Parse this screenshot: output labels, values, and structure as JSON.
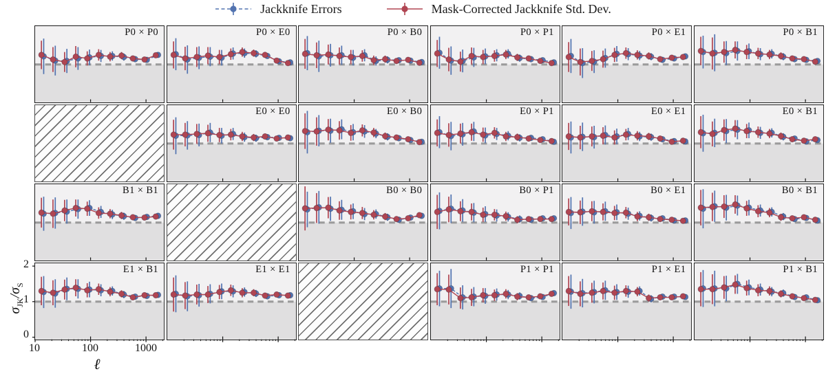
{
  "legend": {
    "items": [
      {
        "label": "Jackknife Errors",
        "color": "#5273b0",
        "line": "dashed"
      },
      {
        "label": "Mask-Corrected Jackknife Std. Dev.",
        "color": "#b04552",
        "line": "solid"
      }
    ]
  },
  "axes": {
    "xlabel": "ℓ",
    "ylabel": {
      "sym1": "σ",
      "sub1": "JK",
      "slash": "/",
      "sym2": "σ",
      "sub2": "S"
    },
    "yticklabels": [
      "2",
      "1",
      "0"
    ],
    "xticklabels": [
      "10",
      "100",
      "1000"
    ],
    "xscale": "log",
    "xlim": [
      10,
      2100
    ],
    "ylim": [
      -0.06,
      2.08
    ],
    "reference_line_y": 1
  },
  "colors": {
    "blue": "#5273b0",
    "red": "#b04552",
    "band_upper": "#f2f1f2",
    "band_lower": "#e0dfe0",
    "dashed_line": "#9b9b9b",
    "tick": "#111111",
    "hatch": "#6f6f6f"
  },
  "chart_data": {
    "type": "scatter",
    "subtype": "errorbar-grid",
    "rows": 4,
    "cols": 6,
    "x": [
      13,
      21,
      34,
      54,
      87,
      140,
      225,
      362,
      580,
      940,
      1500
    ],
    "x_offset_factor_blue": 1.1,
    "series_names": [
      "Mask-Corrected Jackknife Std. Dev. (red)",
      "Jackknife Errors (blue)"
    ],
    "panels": [
      {
        "label": "P0 × P0",
        "hatched": false,
        "red": [
          1.27,
          1.14,
          1.07,
          1.22,
          1.17,
          1.27,
          1.22,
          1.25,
          1.17,
          1.14,
          1.26
        ],
        "blue": [
          1.23,
          1.11,
          1.1,
          1.17,
          1.2,
          1.24,
          1.24,
          1.21,
          1.15,
          1.13,
          1.27
        ],
        "rerr": [
          0.4,
          0.35,
          0.28,
          0.3,
          0.2,
          0.16,
          0.13,
          0.1,
          0.08,
          0.06,
          0.05
        ],
        "berr": [
          0.5,
          0.42,
          0.34,
          0.32,
          0.22,
          0.17,
          0.13,
          0.1,
          0.08,
          0.06,
          0.05
        ]
      },
      {
        "label": "P0 × E0",
        "hatched": false,
        "red": [
          1.27,
          1.17,
          1.21,
          1.25,
          1.21,
          1.29,
          1.35,
          1.32,
          1.27,
          1.11,
          1.04
        ],
        "blue": [
          1.29,
          1.14,
          1.19,
          1.22,
          1.19,
          1.31,
          1.32,
          1.3,
          1.24,
          1.09,
          1.06
        ],
        "rerr": [
          0.38,
          0.33,
          0.28,
          0.24,
          0.2,
          0.16,
          0.13,
          0.1,
          0.08,
          0.06,
          0.05
        ],
        "berr": [
          0.45,
          0.4,
          0.32,
          0.27,
          0.22,
          0.17,
          0.13,
          0.1,
          0.08,
          0.06,
          0.05
        ]
      },
      {
        "label": "P0 × B0",
        "hatched": false,
        "red": [
          1.3,
          1.26,
          1.28,
          1.24,
          1.21,
          1.24,
          1.12,
          1.15,
          1.1,
          1.13,
          1.05
        ],
        "blue": [
          1.32,
          1.23,
          1.26,
          1.26,
          1.19,
          1.26,
          1.1,
          1.13,
          1.12,
          1.11,
          1.07
        ],
        "rerr": [
          0.42,
          0.36,
          0.28,
          0.24,
          0.2,
          0.16,
          0.13,
          0.1,
          0.08,
          0.06,
          0.05
        ],
        "berr": [
          0.48,
          0.44,
          0.32,
          0.27,
          0.22,
          0.17,
          0.13,
          0.1,
          0.08,
          0.06,
          0.05
        ]
      },
      {
        "label": "P0 × P1",
        "hatched": false,
        "red": [
          1.31,
          1.14,
          1.08,
          1.24,
          1.21,
          1.24,
          1.28,
          1.2,
          1.17,
          1.1,
          1.04
        ],
        "blue": [
          1.33,
          1.11,
          1.1,
          1.2,
          1.23,
          1.26,
          1.3,
          1.18,
          1.15,
          1.12,
          1.06
        ],
        "rerr": [
          0.38,
          0.33,
          0.28,
          0.24,
          0.2,
          0.16,
          0.13,
          0.1,
          0.08,
          0.06,
          0.05
        ],
        "berr": [
          0.45,
          0.4,
          0.32,
          0.27,
          0.22,
          0.17,
          0.13,
          0.1,
          0.08,
          0.06,
          0.05
        ]
      },
      {
        "label": "P0 × E1",
        "hatched": false,
        "red": [
          1.21,
          1.07,
          1.1,
          1.15,
          1.27,
          1.32,
          1.27,
          1.24,
          1.15,
          1.19,
          1.21
        ],
        "blue": [
          1.24,
          1.04,
          1.08,
          1.18,
          1.3,
          1.29,
          1.25,
          1.22,
          1.13,
          1.17,
          1.23
        ],
        "rerr": [
          0.42,
          0.38,
          0.28,
          0.24,
          0.2,
          0.16,
          0.13,
          0.1,
          0.08,
          0.06,
          0.05
        ],
        "berr": [
          0.48,
          0.42,
          0.32,
          0.27,
          0.22,
          0.17,
          0.13,
          0.1,
          0.08,
          0.06,
          0.05
        ]
      },
      {
        "label": "P0 × B1",
        "hatched": false,
        "red": [
          1.38,
          1.31,
          1.35,
          1.41,
          1.35,
          1.31,
          1.28,
          1.24,
          1.17,
          1.15,
          1.08
        ],
        "blue": [
          1.35,
          1.33,
          1.32,
          1.38,
          1.37,
          1.29,
          1.3,
          1.22,
          1.15,
          1.13,
          1.1
        ],
        "rerr": [
          0.4,
          0.45,
          0.3,
          0.24,
          0.2,
          0.16,
          0.13,
          0.1,
          0.08,
          0.06,
          0.05
        ],
        "berr": [
          0.46,
          0.52,
          0.34,
          0.27,
          0.22,
          0.17,
          0.13,
          0.1,
          0.08,
          0.06,
          0.05
        ]
      },
      {
        "label": "",
        "hatched": true
      },
      {
        "label": "E0 × E0",
        "hatched": false,
        "red": [
          1.25,
          1.25,
          1.27,
          1.29,
          1.24,
          1.25,
          1.2,
          1.17,
          1.2,
          1.14,
          1.17
        ],
        "blue": [
          1.22,
          1.23,
          1.24,
          1.31,
          1.22,
          1.27,
          1.18,
          1.15,
          1.18,
          1.16,
          1.15
        ],
        "rerr": [
          0.42,
          0.33,
          0.28,
          0.24,
          0.2,
          0.16,
          0.13,
          0.1,
          0.08,
          0.06,
          0.05
        ],
        "berr": [
          0.52,
          0.4,
          0.32,
          0.27,
          0.22,
          0.17,
          0.13,
          0.1,
          0.08,
          0.06,
          0.05
        ]
      },
      {
        "label": "E0 × B0",
        "hatched": false,
        "red": [
          1.35,
          1.34,
          1.39,
          1.37,
          1.3,
          1.37,
          1.31,
          1.21,
          1.17,
          1.12,
          1.04
        ],
        "blue": [
          1.32,
          1.36,
          1.36,
          1.4,
          1.32,
          1.34,
          1.28,
          1.19,
          1.15,
          1.1,
          1.05
        ],
        "rerr": [
          0.5,
          0.4,
          0.3,
          0.26,
          0.22,
          0.17,
          0.13,
          0.1,
          0.08,
          0.06,
          0.05
        ],
        "berr": [
          0.6,
          0.44,
          0.34,
          0.28,
          0.23,
          0.18,
          0.13,
          0.1,
          0.08,
          0.06,
          0.05
        ]
      },
      {
        "label": "E0 × P1",
        "hatched": false,
        "red": [
          1.3,
          1.24,
          1.28,
          1.32,
          1.25,
          1.3,
          1.2,
          1.18,
          1.14,
          1.1,
          1.07
        ],
        "blue": [
          1.32,
          1.21,
          1.26,
          1.34,
          1.23,
          1.27,
          1.22,
          1.16,
          1.16,
          1.12,
          1.05
        ],
        "rerr": [
          0.38,
          0.33,
          0.28,
          0.24,
          0.2,
          0.16,
          0.13,
          0.1,
          0.08,
          0.06,
          0.05
        ],
        "berr": [
          0.45,
          0.4,
          0.32,
          0.27,
          0.22,
          0.17,
          0.13,
          0.1,
          0.08,
          0.06,
          0.05
        ]
      },
      {
        "label": "E0 × E1",
        "hatched": false,
        "red": [
          1.2,
          1.17,
          1.2,
          1.22,
          1.17,
          1.25,
          1.22,
          1.2,
          1.14,
          1.05,
          1.08
        ],
        "blue": [
          1.17,
          1.19,
          1.18,
          1.24,
          1.2,
          1.27,
          1.2,
          1.18,
          1.12,
          1.07,
          1.06
        ],
        "rerr": [
          0.38,
          0.33,
          0.28,
          0.24,
          0.2,
          0.16,
          0.13,
          0.1,
          0.08,
          0.06,
          0.05
        ],
        "berr": [
          0.45,
          0.4,
          0.32,
          0.27,
          0.22,
          0.17,
          0.13,
          0.1,
          0.08,
          0.06,
          0.05
        ]
      },
      {
        "label": "E0 × B1",
        "hatched": false,
        "red": [
          1.32,
          1.27,
          1.38,
          1.42,
          1.35,
          1.32,
          1.28,
          1.21,
          1.12,
          1.08,
          1.12
        ],
        "blue": [
          1.29,
          1.3,
          1.35,
          1.39,
          1.37,
          1.3,
          1.3,
          1.19,
          1.14,
          1.06,
          1.1
        ],
        "rerr": [
          0.45,
          0.35,
          0.3,
          0.24,
          0.2,
          0.16,
          0.13,
          0.1,
          0.08,
          0.06,
          0.05
        ],
        "berr": [
          0.52,
          0.4,
          0.34,
          0.27,
          0.22,
          0.17,
          0.13,
          0.1,
          0.08,
          0.06,
          0.05
        ]
      },
      {
        "label": "B1 × B1",
        "hatched": false,
        "red": [
          1.28,
          1.25,
          1.34,
          1.41,
          1.39,
          1.27,
          1.25,
          1.2,
          1.15,
          1.14,
          1.17
        ],
        "blue": [
          1.25,
          1.27,
          1.31,
          1.38,
          1.41,
          1.3,
          1.23,
          1.18,
          1.13,
          1.16,
          1.19
        ],
        "rerr": [
          0.42,
          0.4,
          0.3,
          0.24,
          0.2,
          0.16,
          0.13,
          0.1,
          0.08,
          0.06,
          0.05
        ],
        "berr": [
          0.48,
          0.44,
          0.34,
          0.27,
          0.22,
          0.17,
          0.13,
          0.1,
          0.08,
          0.06,
          0.05
        ]
      },
      {
        "label": "",
        "hatched": true
      },
      {
        "label": "B0 × B0",
        "hatched": false,
        "red": [
          1.4,
          1.41,
          1.42,
          1.34,
          1.3,
          1.27,
          1.22,
          1.17,
          1.1,
          1.12,
          1.21
        ],
        "blue": [
          1.37,
          1.43,
          1.39,
          1.36,
          1.32,
          1.24,
          1.24,
          1.15,
          1.08,
          1.14,
          1.19
        ],
        "rerr": [
          0.62,
          0.42,
          0.3,
          0.26,
          0.21,
          0.17,
          0.13,
          0.1,
          0.08,
          0.06,
          0.05
        ],
        "berr": [
          0.5,
          0.46,
          0.34,
          0.28,
          0.22,
          0.17,
          0.13,
          0.1,
          0.08,
          0.06,
          0.05
        ]
      },
      {
        "label": "B0 × P1",
        "hatched": false,
        "red": [
          1.3,
          1.37,
          1.32,
          1.3,
          1.22,
          1.22,
          1.18,
          1.08,
          1.1,
          1.1,
          1.1
        ],
        "blue": [
          1.33,
          1.39,
          1.34,
          1.28,
          1.24,
          1.2,
          1.16,
          1.1,
          1.08,
          1.12,
          1.12
        ],
        "rerr": [
          0.48,
          0.36,
          0.28,
          0.24,
          0.2,
          0.16,
          0.13,
          0.1,
          0.08,
          0.06,
          0.05
        ],
        "berr": [
          0.52,
          0.4,
          0.32,
          0.27,
          0.22,
          0.17,
          0.13,
          0.1,
          0.08,
          0.06,
          0.05
        ]
      },
      {
        "label": "B0 × E1",
        "hatched": false,
        "red": [
          1.3,
          1.29,
          1.32,
          1.3,
          1.27,
          1.28,
          1.17,
          1.15,
          1.1,
          1.08,
          1.05
        ],
        "blue": [
          1.27,
          1.31,
          1.29,
          1.32,
          1.29,
          1.25,
          1.19,
          1.13,
          1.12,
          1.06,
          1.06
        ],
        "rerr": [
          0.38,
          0.33,
          0.28,
          0.24,
          0.2,
          0.16,
          0.13,
          0.1,
          0.08,
          0.06,
          0.05
        ],
        "berr": [
          0.45,
          0.4,
          0.32,
          0.27,
          0.22,
          0.17,
          0.13,
          0.1,
          0.08,
          0.06,
          0.05
        ]
      },
      {
        "label": "B0 × B1",
        "hatched": false,
        "red": [
          1.42,
          1.44,
          1.45,
          1.51,
          1.4,
          1.32,
          1.28,
          1.15,
          1.12,
          1.15,
          1.08
        ],
        "blue": [
          1.39,
          1.46,
          1.42,
          1.48,
          1.42,
          1.34,
          1.3,
          1.17,
          1.1,
          1.13,
          1.06
        ],
        "rerr": [
          0.5,
          0.4,
          0.32,
          0.26,
          0.21,
          0.17,
          0.13,
          0.1,
          0.08,
          0.06,
          0.05
        ],
        "berr": [
          0.55,
          0.44,
          0.36,
          0.28,
          0.22,
          0.17,
          0.13,
          0.1,
          0.08,
          0.06,
          0.05
        ]
      },
      {
        "label": "E1 × B1",
        "hatched": false,
        "red": [
          1.3,
          1.25,
          1.34,
          1.39,
          1.32,
          1.35,
          1.28,
          1.22,
          1.12,
          1.18,
          1.18
        ],
        "blue": [
          1.27,
          1.23,
          1.36,
          1.36,
          1.34,
          1.32,
          1.3,
          1.2,
          1.14,
          1.16,
          1.19
        ],
        "rerr": [
          0.4,
          0.35,
          0.28,
          0.24,
          0.2,
          0.16,
          0.13,
          0.1,
          0.08,
          0.06,
          0.05
        ],
        "berr": [
          0.45,
          0.4,
          0.32,
          0.27,
          0.22,
          0.17,
          0.13,
          0.1,
          0.08,
          0.06,
          0.05
        ]
      },
      {
        "label": "E1 × E1",
        "hatched": false,
        "red": [
          1.2,
          1.17,
          1.2,
          1.2,
          1.27,
          1.32,
          1.25,
          1.25,
          1.17,
          1.2,
          1.17
        ],
        "blue": [
          1.22,
          1.15,
          1.18,
          1.22,
          1.29,
          1.29,
          1.27,
          1.23,
          1.15,
          1.18,
          1.18
        ],
        "rerr": [
          0.48,
          0.38,
          0.28,
          0.24,
          0.2,
          0.16,
          0.13,
          0.1,
          0.08,
          0.06,
          0.05
        ],
        "berr": [
          0.52,
          0.42,
          0.32,
          0.27,
          0.22,
          0.17,
          0.13,
          0.1,
          0.08,
          0.06,
          0.05
        ]
      },
      {
        "label": "",
        "hatched": true
      },
      {
        "label": "P1 × P1",
        "hatched": false,
        "red": [
          1.35,
          1.34,
          1.1,
          1.12,
          1.18,
          1.18,
          1.22,
          1.14,
          1.12,
          1.15,
          1.22
        ],
        "blue": [
          1.37,
          1.37,
          1.12,
          1.14,
          1.16,
          1.2,
          1.2,
          1.16,
          1.1,
          1.13,
          1.24
        ],
        "rerr": [
          0.45,
          0.42,
          0.3,
          0.24,
          0.2,
          0.16,
          0.13,
          0.1,
          0.08,
          0.06,
          0.05
        ],
        "berr": [
          0.5,
          0.55,
          0.34,
          0.27,
          0.22,
          0.17,
          0.13,
          0.1,
          0.08,
          0.06,
          0.05
        ]
      },
      {
        "label": "P1 × E1",
        "hatched": false,
        "red": [
          1.3,
          1.22,
          1.25,
          1.3,
          1.25,
          1.3,
          1.28,
          1.1,
          1.12,
          1.12,
          1.15
        ],
        "blue": [
          1.28,
          1.24,
          1.27,
          1.32,
          1.27,
          1.28,
          1.3,
          1.08,
          1.14,
          1.14,
          1.13
        ],
        "rerr": [
          0.42,
          0.35,
          0.28,
          0.24,
          0.2,
          0.16,
          0.13,
          0.1,
          0.08,
          0.06,
          0.05
        ],
        "berr": [
          0.48,
          0.4,
          0.32,
          0.27,
          0.22,
          0.17,
          0.13,
          0.1,
          0.08,
          0.06,
          0.05
        ]
      },
      {
        "label": "P1 × B1",
        "hatched": false,
        "red": [
          1.35,
          1.35,
          1.4,
          1.48,
          1.38,
          1.32,
          1.3,
          1.22,
          1.15,
          1.1,
          1.05
        ],
        "blue": [
          1.37,
          1.37,
          1.37,
          1.5,
          1.4,
          1.34,
          1.28,
          1.24,
          1.13,
          1.12,
          1.04
        ],
        "rerr": [
          0.48,
          0.42,
          0.32,
          0.26,
          0.21,
          0.17,
          0.13,
          0.1,
          0.08,
          0.06,
          0.05
        ],
        "berr": [
          0.52,
          0.5,
          0.36,
          0.28,
          0.22,
          0.17,
          0.13,
          0.1,
          0.08,
          0.06,
          0.05
        ]
      }
    ]
  }
}
